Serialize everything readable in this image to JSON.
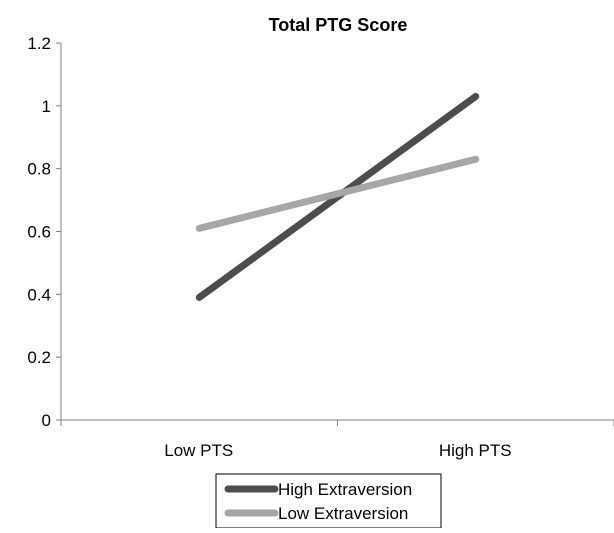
{
  "chart_data": {
    "type": "line",
    "title": "Total PTG Score",
    "xlabel": "",
    "ylabel": "",
    "categories": [
      "Low PTS",
      "High PTS"
    ],
    "y_ticks": [
      "0",
      "0.2",
      "0.4",
      "0.6",
      "0.8",
      "1",
      "1.2"
    ],
    "ylim": [
      0,
      1.2
    ],
    "grid": false,
    "legend_position": "bottom",
    "series": [
      {
        "name": "High Extraversion",
        "values": [
          0.39,
          1.03
        ],
        "color": "#4d4d4d"
      },
      {
        "name": "Low Extraversion",
        "values": [
          0.61,
          0.83
        ],
        "color": "#a6a6a6"
      }
    ]
  }
}
